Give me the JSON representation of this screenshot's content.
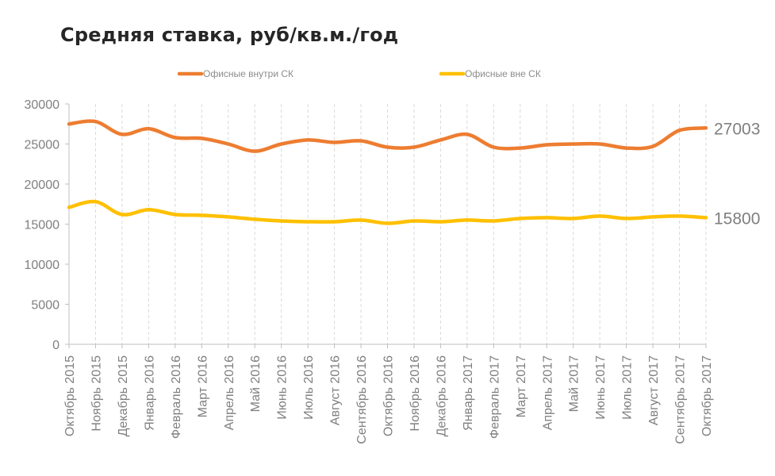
{
  "title": "Средняя ставка, руб/кв.м./год",
  "chart_data": {
    "type": "line",
    "title": "Средняя ставка, руб/кв.м./год",
    "xlabel": "",
    "ylabel": "",
    "ylim": [
      0,
      30000
    ],
    "yticks": [
      0,
      5000,
      10000,
      15000,
      20000,
      25000,
      30000
    ],
    "grid": "vertical dashed",
    "legend": "top",
    "categories": [
      "Октябрь 2015",
      "Ноябрь 2015",
      "Декабрь 2015",
      "Январь 2016",
      "Февраль 2016",
      "Март 2016",
      "Апрель 2016",
      "Май 2016",
      "Июнь 2016",
      "Июль 2016",
      "Август 2016",
      "Сентябрь 2016",
      "Октябрь 2016",
      "Ноябрь 2016",
      "Декабрь 2016",
      "Январь 2017",
      "Февраль 2017",
      "Март 2017",
      "Апрель 2017",
      "Май 2017",
      "Июнь 2017",
      "Июль 2017",
      "Август 2017",
      "Сентябрь 2017",
      "Октябрь 2017"
    ],
    "series": [
      {
        "name": "Офисные внутри СК",
        "color": "#ed7d31",
        "values": [
          27500,
          27800,
          26200,
          26900,
          25800,
          25700,
          25000,
          24100,
          25000,
          25500,
          25200,
          25400,
          24600,
          24600,
          25500,
          26200,
          24600,
          24500,
          24900,
          25000,
          25000,
          24500,
          24700,
          26700,
          27003
        ],
        "end_label": "27003"
      },
      {
        "name": "Офисные вне СК",
        "color": "#ffc000",
        "values": [
          17100,
          17800,
          16200,
          16800,
          16200,
          16100,
          15900,
          15600,
          15400,
          15300,
          15300,
          15500,
          15100,
          15400,
          15300,
          15500,
          15400,
          15700,
          15800,
          15700,
          16000,
          15700,
          15900,
          16000,
          15800
        ],
        "end_label": "15800"
      }
    ]
  }
}
